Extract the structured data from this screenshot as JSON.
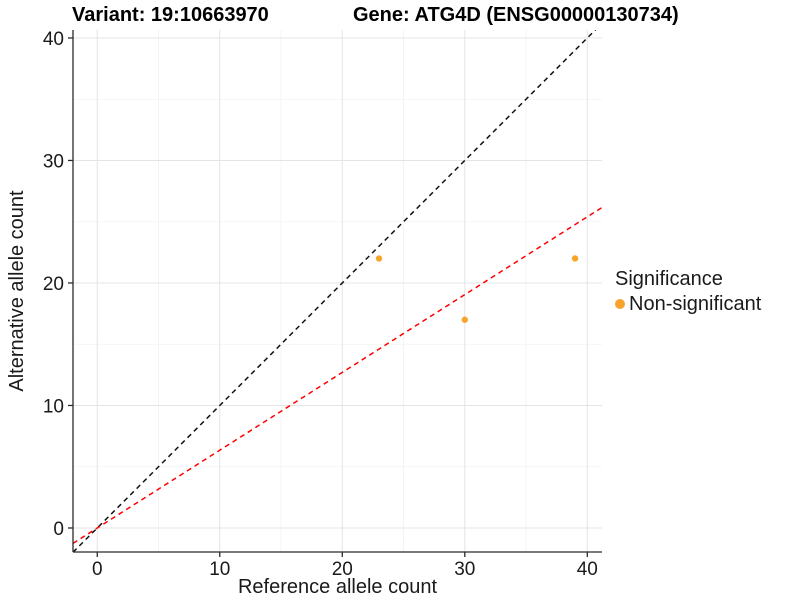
{
  "titles": {
    "left": "Variant: 19:10663970",
    "right": "Gene: ATG4D (ENSG00000130734)"
  },
  "chart_data": {
    "type": "scatter",
    "xlabel": "Reference allele count",
    "ylabel": "Alternative allele count",
    "xlim": [
      -1.98,
      41.2
    ],
    "ylim": [
      -1.96,
      40.65
    ],
    "xticks": [
      0,
      10,
      20,
      30,
      40
    ],
    "yticks": [
      0,
      10,
      20,
      30,
      40
    ],
    "xticks_minor": [
      5,
      15,
      25,
      35
    ],
    "yticks_minor": [
      5,
      15,
      25,
      35
    ],
    "grid": "major+minor",
    "points": {
      "series": "Non-significant",
      "color": "#F8A42A",
      "xy": [
        [
          23,
          22
        ],
        [
          30,
          17
        ],
        [
          39,
          22
        ]
      ]
    },
    "ablines": [
      {
        "name": "identity-line",
        "slope": 1,
        "intercept": 0,
        "color": "#111111",
        "linetype": "dashed"
      },
      {
        "name": "fit-line",
        "slope": 0.635,
        "intercept": 0,
        "color": "#FF0000",
        "linetype": "dashed"
      }
    ],
    "colors": {
      "grid_major": "#E4E4E4",
      "grid_minor": "#F2F2F2",
      "axis": "#2b2b2b",
      "tick_text": "#1a1a1a"
    },
    "legend": {
      "title": "Significance",
      "position": "right",
      "entries": [
        {
          "label": "Non-significant",
          "color": "#F8A42A"
        }
      ]
    }
  }
}
